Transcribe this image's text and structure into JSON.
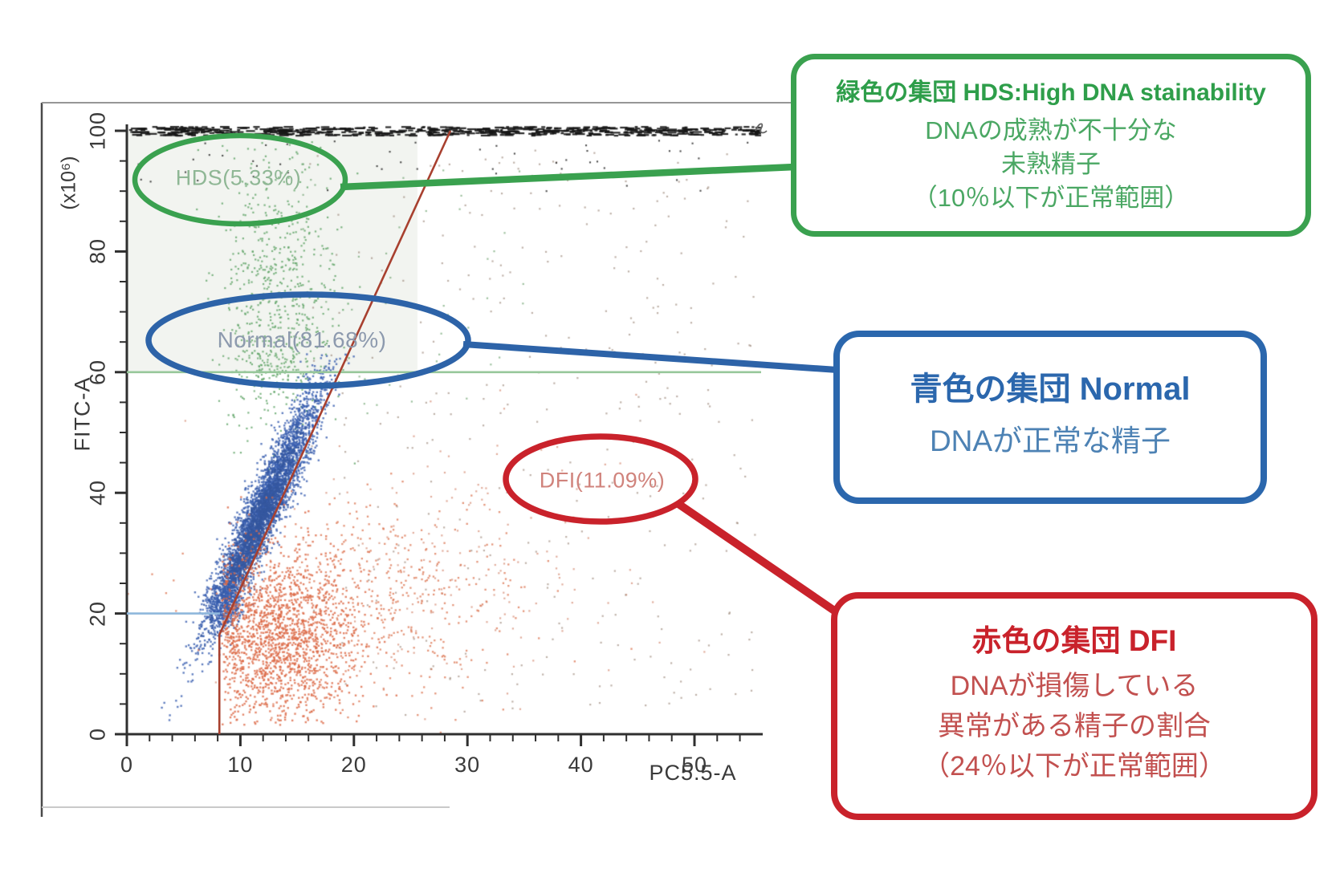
{
  "figure": {
    "background": "#ffffff",
    "scan_frame_color": "#4a4a4a"
  },
  "chart_data": {
    "type": "scatter",
    "title": "",
    "xlabel": "PC5.5-A",
    "ylabel": "FITC-A",
    "y_axis_unit": "(x10⁶)",
    "xlim": [
      0,
      56
    ],
    "ylim": [
      0,
      100
    ],
    "grid": false,
    "x_major_ticks": [
      0,
      10,
      20,
      30,
      40,
      50
    ],
    "x_minor_step": 2,
    "x_minor_max": 54,
    "y_major_ticks": [
      0,
      20,
      40,
      60,
      80,
      100
    ],
    "y_minor_step": 5,
    "gates": {
      "hds_threshold_y": 60,
      "hds_line_color": "#97c79a",
      "normal_low_y": 20,
      "normal_low_x_range": [
        0,
        8.2
      ],
      "normal_line_color": "#8fb7dc",
      "dfi_boundary": [
        [
          8.15,
          0
        ],
        [
          8.15,
          16.5
        ],
        [
          28.5,
          100
        ]
      ],
      "dfi_boundary_color": "#a8402f"
    },
    "populations": {
      "normal": {
        "name": "Normal",
        "label": "Normal(81.68%)",
        "percent": 81.68,
        "color": "#3a5fb0",
        "region": "dense elongated blue cluster rising from (8,20) to (18,61)",
        "clouds": [
          {
            "kind": "band",
            "p0": [
              8.2,
              21
            ],
            "p1": [
              17.7,
              60.5
            ],
            "t_mean": 0.42,
            "t_sd": 0.27,
            "sd": [
              0.85,
              1.4
            ],
            "n": 3200,
            "size": 2.4,
            "alpha": 0.8,
            "color": "#3a5fb0",
            "y_max": 63
          },
          {
            "kind": "band",
            "p0": [
              8.2,
              21
            ],
            "p1": [
              17.7,
              60.5
            ],
            "t_mean": 0.33,
            "t_sd": 0.17,
            "sd": [
              0.55,
              1.0
            ],
            "n": 1300,
            "size": 2.4,
            "alpha": 0.85,
            "color": "#35579f",
            "y_max": 63
          },
          {
            "kind": "gauss",
            "center": [
              8.6,
              21.5
            ],
            "sd": [
              0.7,
              1.8
            ],
            "n": 320,
            "size": 2.3,
            "alpha": 0.8,
            "color": "#3a5fb0"
          }
        ]
      },
      "dfi": {
        "name": "DFI",
        "label": "DFI(11.09%)",
        "percent": 11.09,
        "color": "#dc6946",
        "region": "orange/red cluster below and right of blue cluster, x 8-40, y 2-40",
        "clouds": [
          {
            "kind": "gauss",
            "center": [
              13.5,
              16
            ],
            "sd": [
              3.4,
              7.2
            ],
            "n": 1700,
            "size": 2.4,
            "alpha": 0.8,
            "color": "#dc6946",
            "reflect_min_x": 8.4,
            "y_min": 1.5
          },
          {
            "kind": "gauss",
            "center": [
              22,
              22
            ],
            "sd": [
              6.5,
              8.5
            ],
            "n": 520,
            "size": 2.3,
            "alpha": 0.7,
            "color": "#d96a43"
          },
          {
            "kind": "gauss",
            "center": [
              31,
              29
            ],
            "sd": [
              8,
              11
            ],
            "n": 170,
            "size": 2.2,
            "alpha": 0.55,
            "color": "#c96a4a"
          }
        ]
      },
      "hds": {
        "name": "HDS",
        "label": "HDS(5.33%)",
        "percent": 5.33,
        "color": "#5fa466",
        "region": "green scattered band above y=60, x 9-21",
        "clouds": [
          {
            "kind": "gauss",
            "center": [
              13,
              73
            ],
            "sd": [
              2.7,
              12
            ],
            "n": 640,
            "size": 2.2,
            "alpha": 0.8,
            "color": "#5fa466",
            "y_max": 99
          },
          {
            "kind": "gauss",
            "center": [
              13.5,
              61
            ],
            "sd": [
              2.2,
              2.5
            ],
            "n": 110,
            "size": 2.2,
            "alpha": 0.75,
            "color": "#5fa466"
          },
          {
            "kind": "uniform",
            "x": [
              15,
              36
            ],
            "y": [
              52,
              96
            ],
            "n": 45,
            "size": 2.2,
            "alpha": 0.65,
            "color": "#6aa06c"
          }
        ]
      },
      "debris": {
        "name": "",
        "label": "",
        "color": "#8b7262",
        "region": "sparse gray-brown events across right half of plot",
        "clouds": [
          {
            "kind": "uniform",
            "x": [
              16,
              55.5
            ],
            "y": [
              3,
              97
            ],
            "n": 330,
            "xpow": 0.9,
            "size": 2.2,
            "alpha": 0.55,
            "color": "#8b7262"
          }
        ]
      },
      "saturated": {
        "name": "",
        "label": "",
        "color": "#161616",
        "region": "dense black band of saturated events at y=100",
        "clouds": [
          {
            "kind": "dashband",
            "x": [
              0,
              55.8
            ],
            "ypx": [
              157,
              168
            ],
            "n": 560,
            "alpha": 0.9,
            "color": "#161616"
          },
          {
            "kind": "uniform",
            "x": [
              1,
              55.5
            ],
            "y": [
              90,
              98.5
            ],
            "n": 52,
            "size": 2.1,
            "alpha": 0.8,
            "color": "#222222"
          }
        ]
      }
    }
  },
  "callouts": {
    "hds": {
      "title": "緑色の集団 HDS:High DNA stainability",
      "lines": [
        "DNAの成熟が不十分な",
        "未熟精子",
        "（10％以下が正常範囲）"
      ],
      "accent": "#3aa14f"
    },
    "normal": {
      "title": "青色の集団 Normal",
      "lines": [
        "DNAが正常な精子"
      ],
      "accent": "#2b67ad"
    },
    "dfi": {
      "title": "赤色の集団 DFI",
      "lines": [
        "DNAが損傷している",
        "異常がある精子の割合",
        "（24％以下が正常範囲）"
      ],
      "accent": "#c9222b"
    }
  }
}
